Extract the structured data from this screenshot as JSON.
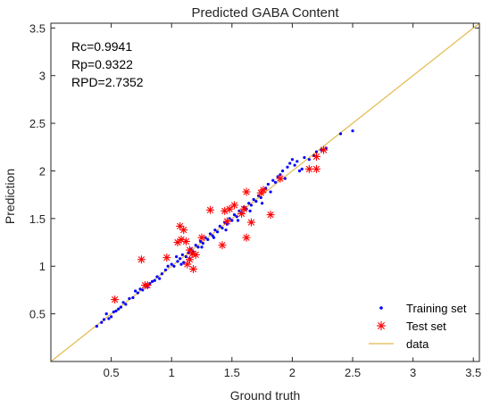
{
  "chart_data": {
    "type": "scatter",
    "title": "Predicted GABA Content",
    "xlabel": "Ground truth",
    "ylabel": "Prediction",
    "xlim": [
      0,
      3.55
    ],
    "ylim": [
      0,
      3.55
    ],
    "xticks": [
      "0.5",
      "1",
      "1.5",
      "2",
      "2.5",
      "3",
      "3.5"
    ],
    "yticks": [
      "0.5",
      "1",
      "1.5",
      "2",
      "2.5",
      "3",
      "3.5"
    ],
    "xtick_values": [
      0.5,
      1,
      1.5,
      2,
      2.5,
      3,
      3.5
    ],
    "ytick_values": [
      0.5,
      1,
      1.5,
      2,
      2.5,
      3,
      3.5
    ],
    "annotations": [
      "Rc=0.9941",
      "Rp=0.9322",
      "RPD=2.7352"
    ],
    "legend_position": "bottom-right",
    "series": [
      {
        "name": "Training set",
        "marker": "dot",
        "color": "#0000ff",
        "points": [
          [
            0.38,
            0.37
          ],
          [
            0.42,
            0.41
          ],
          [
            0.44,
            0.44
          ],
          [
            0.46,
            0.5
          ],
          [
            0.48,
            0.45
          ],
          [
            0.5,
            0.47
          ],
          [
            0.52,
            0.52
          ],
          [
            0.54,
            0.53
          ],
          [
            0.56,
            0.55
          ],
          [
            0.58,
            0.57
          ],
          [
            0.6,
            0.62
          ],
          [
            0.62,
            0.6
          ],
          [
            0.65,
            0.66
          ],
          [
            0.68,
            0.67
          ],
          [
            0.7,
            0.74
          ],
          [
            0.72,
            0.72
          ],
          [
            0.74,
            0.76
          ],
          [
            0.76,
            0.75
          ],
          [
            0.78,
            0.8
          ],
          [
            0.8,
            0.78
          ],
          [
            0.82,
            0.82
          ],
          [
            0.84,
            0.84
          ],
          [
            0.86,
            0.85
          ],
          [
            0.88,
            0.89
          ],
          [
            0.9,
            0.87
          ],
          [
            0.92,
            0.92
          ],
          [
            0.95,
            0.96
          ],
          [
            0.97,
            1.0
          ],
          [
            1.0,
            1.02
          ],
          [
            1.02,
            1.0
          ],
          [
            1.05,
            1.05
          ],
          [
            1.07,
            1.08
          ],
          [
            1.09,
            1.12
          ],
          [
            1.1,
            1.04
          ],
          [
            1.12,
            1.1
          ],
          [
            1.14,
            1.14
          ],
          [
            1.16,
            1.18
          ],
          [
            1.18,
            1.15
          ],
          [
            1.2,
            1.22
          ],
          [
            1.22,
            1.2
          ],
          [
            1.24,
            1.26
          ],
          [
            1.26,
            1.24
          ],
          [
            1.28,
            1.3
          ],
          [
            1.3,
            1.28
          ],
          [
            1.32,
            1.34
          ],
          [
            1.34,
            1.32
          ],
          [
            1.36,
            1.38
          ],
          [
            1.38,
            1.36
          ],
          [
            1.4,
            1.42
          ],
          [
            1.42,
            1.4
          ],
          [
            1.44,
            1.46
          ],
          [
            1.46,
            1.44
          ],
          [
            1.48,
            1.5
          ],
          [
            1.5,
            1.48
          ],
          [
            1.52,
            1.54
          ],
          [
            1.54,
            1.52
          ],
          [
            1.56,
            1.58
          ],
          [
            1.58,
            1.56
          ],
          [
            1.6,
            1.62
          ],
          [
            1.62,
            1.6
          ],
          [
            1.64,
            1.66
          ],
          [
            1.66,
            1.64
          ],
          [
            1.68,
            1.7
          ],
          [
            1.7,
            1.68
          ],
          [
            1.72,
            1.74
          ],
          [
            1.74,
            1.72
          ],
          [
            1.76,
            1.8
          ],
          [
            1.78,
            1.82
          ],
          [
            1.8,
            1.86
          ],
          [
            1.82,
            1.78
          ],
          [
            1.84,
            1.9
          ],
          [
            1.86,
            1.88
          ],
          [
            1.88,
            1.94
          ],
          [
            1.9,
            1.96
          ],
          [
            1.92,
            2.0
          ],
          [
            1.94,
            1.92
          ],
          [
            1.96,
            2.04
          ],
          [
            1.98,
            2.08
          ],
          [
            2.0,
            2.12
          ],
          [
            2.02,
            2.06
          ],
          [
            2.04,
            2.1
          ],
          [
            2.06,
            2.0
          ],
          [
            2.08,
            2.02
          ],
          [
            2.1,
            2.14
          ],
          [
            2.14,
            2.12
          ],
          [
            2.18,
            2.16
          ],
          [
            2.2,
            2.2
          ],
          [
            2.24,
            2.22
          ],
          [
            2.28,
            2.24
          ],
          [
            2.4,
            2.39
          ],
          [
            2.5,
            2.42
          ],
          [
            1.04,
            1.1
          ],
          [
            1.08,
            1.02
          ],
          [
            1.15,
            1.08
          ],
          [
            1.25,
            1.2
          ],
          [
            1.35,
            1.3
          ],
          [
            1.45,
            1.38
          ],
          [
            1.55,
            1.48
          ],
          [
            1.65,
            1.58
          ],
          [
            1.75,
            1.66
          ]
        ]
      },
      {
        "name": "Test set",
        "marker": "star",
        "color": "#ff0000",
        "points": [
          [
            0.53,
            0.65
          ],
          [
            0.75,
            1.07
          ],
          [
            0.78,
            0.8
          ],
          [
            0.8,
            0.8
          ],
          [
            0.96,
            1.09
          ],
          [
            1.05,
            1.25
          ],
          [
            1.07,
            1.42
          ],
          [
            1.08,
            1.28
          ],
          [
            1.1,
            1.38
          ],
          [
            1.12,
            1.26
          ],
          [
            1.13,
            1.02
          ],
          [
            1.15,
            1.17
          ],
          [
            1.15,
            1.07
          ],
          [
            1.17,
            1.13
          ],
          [
            1.18,
            0.97
          ],
          [
            1.2,
            1.12
          ],
          [
            1.25,
            1.3
          ],
          [
            1.32,
            1.59
          ],
          [
            1.42,
            1.22
          ],
          [
            1.44,
            1.58
          ],
          [
            1.46,
            1.47
          ],
          [
            1.48,
            1.6
          ],
          [
            1.52,
            1.64
          ],
          [
            1.58,
            1.55
          ],
          [
            1.6,
            1.6
          ],
          [
            1.62,
            1.3
          ],
          [
            1.62,
            1.78
          ],
          [
            1.66,
            1.46
          ],
          [
            1.74,
            1.77
          ],
          [
            1.76,
            1.8
          ],
          [
            1.82,
            1.54
          ],
          [
            1.9,
            1.92
          ],
          [
            2.14,
            2.02
          ],
          [
            2.2,
            2.02
          ],
          [
            2.2,
            2.15
          ],
          [
            2.26,
            2.22
          ]
        ]
      },
      {
        "name": "data",
        "marker": "line",
        "color": "#e3b94a",
        "points": [
          [
            0,
            0
          ],
          [
            3.55,
            3.55
          ]
        ]
      }
    ]
  }
}
